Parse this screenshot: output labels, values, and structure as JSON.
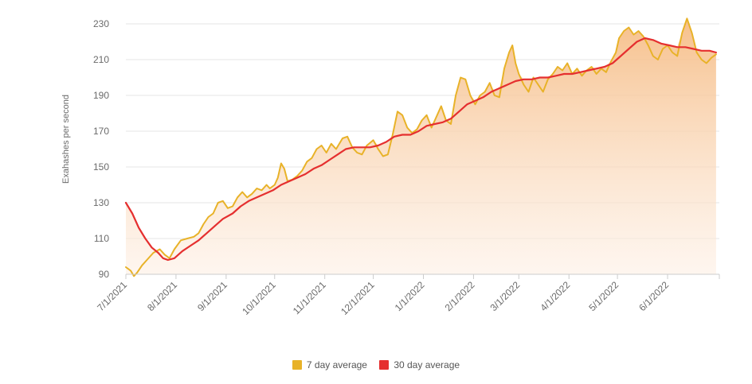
{
  "chart_data": {
    "type": "line",
    "title": "",
    "xlabel": "",
    "ylabel": "Exahashes per second",
    "ylim": [
      90,
      230
    ],
    "yticks": [
      90,
      110,
      130,
      150,
      170,
      190,
      210,
      230
    ],
    "xlim": [
      "2021-07-01",
      "2022-07-03"
    ],
    "xticks": [
      {
        "date": "2021-07-01",
        "label": "7/1/2021"
      },
      {
        "date": "2021-08-01",
        "label": "8/1/2021"
      },
      {
        "date": "2021-09-01",
        "label": "9/1/2021"
      },
      {
        "date": "2021-10-01",
        "label": "10/1/2021"
      },
      {
        "date": "2021-11-01",
        "label": "11/1/2021"
      },
      {
        "date": "2021-12-01",
        "label": "12/1/2021"
      },
      {
        "date": "2022-01-01",
        "label": "1/1/2022"
      },
      {
        "date": "2022-02-01",
        "label": "2/1/2022"
      },
      {
        "date": "2022-03-01",
        "label": "3/1/2022"
      },
      {
        "date": "2022-04-01",
        "label": "4/1/2022"
      },
      {
        "date": "2022-05-01",
        "label": "5/1/2022"
      },
      {
        "date": "2022-06-01",
        "label": "6/1/2022"
      }
    ],
    "grid": "horizontal",
    "legend_position": "bottom",
    "series": [
      {
        "name": "7 day average",
        "color": "#e8b228",
        "points": [
          [
            "2021-07-01",
            94
          ],
          [
            "2021-07-04",
            92
          ],
          [
            "2021-07-06",
            89
          ],
          [
            "2021-07-08",
            91
          ],
          [
            "2021-07-11",
            95
          ],
          [
            "2021-07-14",
            98
          ],
          [
            "2021-07-18",
            102
          ],
          [
            "2021-07-22",
            104
          ],
          [
            "2021-07-25",
            101
          ],
          [
            "2021-07-28",
            99
          ],
          [
            "2021-07-31",
            104
          ],
          [
            "2021-08-04",
            109
          ],
          [
            "2021-08-08",
            110
          ],
          [
            "2021-08-12",
            111
          ],
          [
            "2021-08-15",
            113
          ],
          [
            "2021-08-18",
            118
          ],
          [
            "2021-08-21",
            122
          ],
          [
            "2021-08-24",
            124
          ],
          [
            "2021-08-27",
            130
          ],
          [
            "2021-08-30",
            131
          ],
          [
            "2021-09-02",
            127
          ],
          [
            "2021-09-05",
            128
          ],
          [
            "2021-09-08",
            133
          ],
          [
            "2021-09-11",
            136
          ],
          [
            "2021-09-14",
            133
          ],
          [
            "2021-09-17",
            135
          ],
          [
            "2021-09-20",
            138
          ],
          [
            "2021-09-23",
            137
          ],
          [
            "2021-09-26",
            140
          ],
          [
            "2021-09-28",
            138
          ],
          [
            "2021-10-01",
            140
          ],
          [
            "2021-10-03",
            144
          ],
          [
            "2021-10-05",
            152
          ],
          [
            "2021-10-07",
            149
          ],
          [
            "2021-10-09",
            142
          ],
          [
            "2021-10-12",
            143
          ],
          [
            "2021-10-15",
            145
          ],
          [
            "2021-10-18",
            148
          ],
          [
            "2021-10-21",
            153
          ],
          [
            "2021-10-24",
            155
          ],
          [
            "2021-10-27",
            160
          ],
          [
            "2021-10-30",
            162
          ],
          [
            "2021-11-02",
            158
          ],
          [
            "2021-11-05",
            163
          ],
          [
            "2021-11-08",
            160
          ],
          [
            "2021-11-12",
            166
          ],
          [
            "2021-11-15",
            167
          ],
          [
            "2021-11-18",
            161
          ],
          [
            "2021-11-21",
            158
          ],
          [
            "2021-11-24",
            157
          ],
          [
            "2021-11-27",
            162
          ],
          [
            "2021-12-01",
            165
          ],
          [
            "2021-12-04",
            160
          ],
          [
            "2021-12-07",
            156
          ],
          [
            "2021-12-10",
            157
          ],
          [
            "2021-12-13",
            168
          ],
          [
            "2021-12-16",
            181
          ],
          [
            "2021-12-19",
            179
          ],
          [
            "2021-12-22",
            172
          ],
          [
            "2021-12-25",
            169
          ],
          [
            "2021-12-28",
            171
          ],
          [
            "2021-12-31",
            176
          ],
          [
            "2022-01-03",
            179
          ],
          [
            "2022-01-06",
            172
          ],
          [
            "2022-01-09",
            178
          ],
          [
            "2022-01-12",
            184
          ],
          [
            "2022-01-15",
            176
          ],
          [
            "2022-01-18",
            174
          ],
          [
            "2022-01-21",
            190
          ],
          [
            "2022-01-24",
            200
          ],
          [
            "2022-01-27",
            199
          ],
          [
            "2022-01-30",
            190
          ],
          [
            "2022-02-02",
            185
          ],
          [
            "2022-02-05",
            190
          ],
          [
            "2022-02-08",
            192
          ],
          [
            "2022-02-11",
            197
          ],
          [
            "2022-02-14",
            190
          ],
          [
            "2022-02-17",
            189
          ],
          [
            "2022-02-20",
            205
          ],
          [
            "2022-02-23",
            214
          ],
          [
            "2022-02-25",
            218
          ],
          [
            "2022-02-27",
            208
          ],
          [
            "2022-03-01",
            202
          ],
          [
            "2022-03-04",
            196
          ],
          [
            "2022-03-07",
            192
          ],
          [
            "2022-03-10",
            200
          ],
          [
            "2022-03-13",
            196
          ],
          [
            "2022-03-16",
            192
          ],
          [
            "2022-03-19",
            199
          ],
          [
            "2022-03-22",
            202
          ],
          [
            "2022-03-25",
            206
          ],
          [
            "2022-03-28",
            204
          ],
          [
            "2022-03-31",
            208
          ],
          [
            "2022-04-03",
            202
          ],
          [
            "2022-04-06",
            205
          ],
          [
            "2022-04-09",
            201
          ],
          [
            "2022-04-12",
            204
          ],
          [
            "2022-04-15",
            206
          ],
          [
            "2022-04-18",
            202
          ],
          [
            "2022-04-21",
            205
          ],
          [
            "2022-04-24",
            203
          ],
          [
            "2022-04-27",
            209
          ],
          [
            "2022-04-30",
            214
          ],
          [
            "2022-05-02",
            222
          ],
          [
            "2022-05-05",
            226
          ],
          [
            "2022-05-08",
            228
          ],
          [
            "2022-05-11",
            224
          ],
          [
            "2022-05-14",
            226
          ],
          [
            "2022-05-17",
            223
          ],
          [
            "2022-05-20",
            218
          ],
          [
            "2022-05-23",
            212
          ],
          [
            "2022-05-26",
            210
          ],
          [
            "2022-05-29",
            216
          ],
          [
            "2022-06-01",
            218
          ],
          [
            "2022-06-04",
            214
          ],
          [
            "2022-06-07",
            212
          ],
          [
            "2022-06-10",
            225
          ],
          [
            "2022-06-13",
            233
          ],
          [
            "2022-06-16",
            225
          ],
          [
            "2022-06-19",
            214
          ],
          [
            "2022-06-22",
            210
          ],
          [
            "2022-06-25",
            208
          ],
          [
            "2022-06-28",
            211
          ],
          [
            "2022-07-01",
            213
          ]
        ]
      },
      {
        "name": "30 day average",
        "color": "#e52f2f",
        "points": [
          [
            "2021-07-01",
            130
          ],
          [
            "2021-07-05",
            124
          ],
          [
            "2021-07-09",
            116
          ],
          [
            "2021-07-13",
            110
          ],
          [
            "2021-07-17",
            105
          ],
          [
            "2021-07-21",
            102
          ],
          [
            "2021-07-24",
            99
          ],
          [
            "2021-07-27",
            98
          ],
          [
            "2021-07-31",
            99
          ],
          [
            "2021-08-05",
            103
          ],
          [
            "2021-08-10",
            106
          ],
          [
            "2021-08-15",
            109
          ],
          [
            "2021-08-20",
            113
          ],
          [
            "2021-08-25",
            117
          ],
          [
            "2021-08-30",
            121
          ],
          [
            "2021-09-05",
            124
          ],
          [
            "2021-09-10",
            128
          ],
          [
            "2021-09-15",
            131
          ],
          [
            "2021-09-20",
            133
          ],
          [
            "2021-09-25",
            135
          ],
          [
            "2021-09-30",
            137
          ],
          [
            "2021-10-05",
            140
          ],
          [
            "2021-10-10",
            142
          ],
          [
            "2021-10-15",
            144
          ],
          [
            "2021-10-20",
            146
          ],
          [
            "2021-10-25",
            149
          ],
          [
            "2021-10-30",
            151
          ],
          [
            "2021-11-04",
            154
          ],
          [
            "2021-11-09",
            157
          ],
          [
            "2021-11-14",
            160
          ],
          [
            "2021-11-19",
            161
          ],
          [
            "2021-11-24",
            161
          ],
          [
            "2021-11-29",
            161
          ],
          [
            "2021-12-04",
            162
          ],
          [
            "2021-12-09",
            164
          ],
          [
            "2021-12-14",
            167
          ],
          [
            "2021-12-19",
            168
          ],
          [
            "2021-12-24",
            168
          ],
          [
            "2021-12-29",
            170
          ],
          [
            "2022-01-03",
            173
          ],
          [
            "2022-01-08",
            174
          ],
          [
            "2022-01-13",
            175
          ],
          [
            "2022-01-18",
            177
          ],
          [
            "2022-01-23",
            181
          ],
          [
            "2022-01-28",
            185
          ],
          [
            "2022-02-02",
            187
          ],
          [
            "2022-02-07",
            189
          ],
          [
            "2022-02-12",
            192
          ],
          [
            "2022-02-17",
            194
          ],
          [
            "2022-02-22",
            196
          ],
          [
            "2022-02-27",
            198
          ],
          [
            "2022-03-04",
            199
          ],
          [
            "2022-03-09",
            199
          ],
          [
            "2022-03-14",
            200
          ],
          [
            "2022-03-19",
            200
          ],
          [
            "2022-03-24",
            201
          ],
          [
            "2022-03-29",
            202
          ],
          [
            "2022-04-03",
            202
          ],
          [
            "2022-04-08",
            203
          ],
          [
            "2022-04-13",
            204
          ],
          [
            "2022-04-18",
            205
          ],
          [
            "2022-04-23",
            206
          ],
          [
            "2022-04-28",
            208
          ],
          [
            "2022-05-03",
            212
          ],
          [
            "2022-05-08",
            216
          ],
          [
            "2022-05-13",
            220
          ],
          [
            "2022-05-18",
            222
          ],
          [
            "2022-05-23",
            221
          ],
          [
            "2022-05-28",
            219
          ],
          [
            "2022-06-02",
            218
          ],
          [
            "2022-06-07",
            217
          ],
          [
            "2022-06-12",
            217
          ],
          [
            "2022-06-17",
            216
          ],
          [
            "2022-06-22",
            215
          ],
          [
            "2022-06-27",
            215
          ],
          [
            "2022-07-01",
            214
          ]
        ]
      }
    ]
  }
}
